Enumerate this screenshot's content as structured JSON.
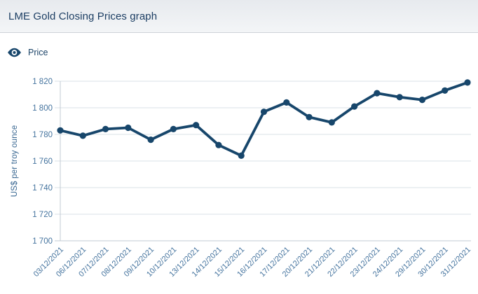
{
  "header": {
    "title": "LME Gold Closing Prices graph"
  },
  "legend": {
    "label": "Price",
    "icon": "eye-icon"
  },
  "colors": {
    "series_line": "#17466b",
    "title_text": "#1c3e63",
    "legend_text": "#1c4468",
    "tick_text": "#44739e",
    "axis_title_text": "#35648f",
    "gridline": "#d9e0e7",
    "axis_line": "#c2cbd3",
    "header_border": "#cdd2d7"
  },
  "chart_data": {
    "type": "line",
    "title": "LME Gold Closing Prices graph",
    "xlabel": "",
    "ylabel": "US$ per troy ounce",
    "ylim": [
      1700,
      1820
    ],
    "grid": true,
    "legend_position": "top-left",
    "yticks": [
      {
        "value": 1700,
        "label": "1 700"
      },
      {
        "value": 1720,
        "label": "1 720"
      },
      {
        "value": 1740,
        "label": "1 740"
      },
      {
        "value": 1760,
        "label": "1 760"
      },
      {
        "value": 1780,
        "label": "1 780"
      },
      {
        "value": 1800,
        "label": "1 800"
      },
      {
        "value": 1820,
        "label": "1 820"
      }
    ],
    "categories": [
      "03/12/2021",
      "06/12/2021",
      "07/12/2021",
      "08/12/2021",
      "09/12/2021",
      "10/12/2021",
      "13/12/2021",
      "14/12/2021",
      "15/12/2021",
      "16/12/2021",
      "17/12/2021",
      "20/12/2021",
      "21/12/2021",
      "22/12/2021",
      "23/12/2021",
      "24/12/2021",
      "29/12/2021",
      "30/12/2021",
      "31/12/2021"
    ],
    "series": [
      {
        "name": "Price",
        "color": "#17466b",
        "values": [
          1783,
          1779,
          1784,
          1785,
          1776,
          1784,
          1787,
          1772,
          1764,
          1797,
          1804,
          1793,
          1789,
          1801,
          1811,
          1808,
          1806,
          1813,
          1819
        ]
      }
    ]
  }
}
